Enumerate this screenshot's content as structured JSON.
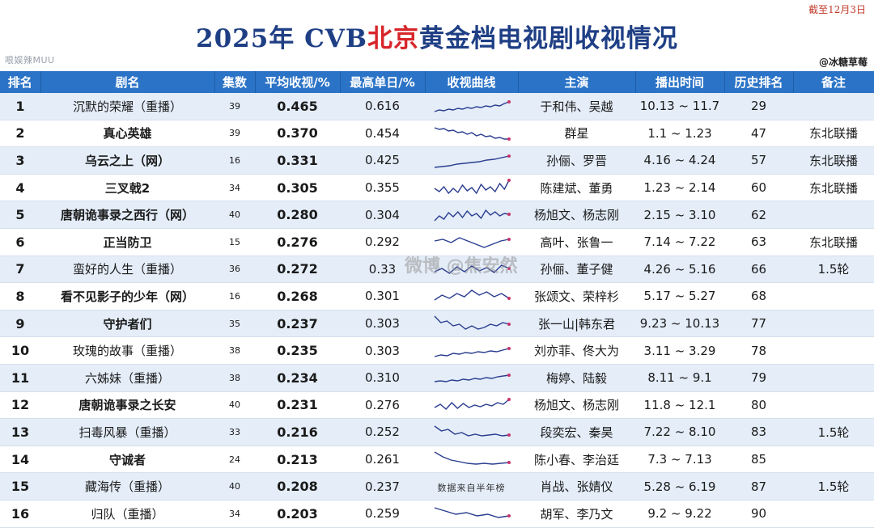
{
  "header": {
    "date_note": "截至12月3日",
    "title_year": "2025年 CVB",
    "title_city": "北京",
    "title_rest": "黄金档电视剧收视情况",
    "left_watermark": "哏娱辣MUU",
    "credit": "@冰糖草莓",
    "center_watermark": "微博 @焦安然"
  },
  "columns": [
    "排名",
    "剧名",
    "集数",
    "平均收视/%",
    "最高单日/%",
    "收视曲线",
    "主演",
    "播出时间",
    "历史排名",
    "备注"
  ],
  "rows": [
    {
      "rank": "1",
      "title": "沉默的荣耀（重播）",
      "eps": "39",
      "avg": "0.465",
      "peak": "0.616",
      "cast": "于和伟、吴越",
      "period": "10.13 ~ 11.7",
      "hist": "29",
      "note": "",
      "bold": false,
      "curve": [
        20,
        18,
        19,
        17,
        18,
        16,
        17,
        15,
        16,
        14,
        15,
        13,
        14,
        12,
        13,
        10,
        8
      ]
    },
    {
      "rank": "2",
      "title": "真心英雄",
      "eps": "39",
      "avg": "0.370",
      "peak": "0.454",
      "cast": "群星",
      "period": "1.1 ~ 1.23",
      "hist": "47",
      "note": "东北联播",
      "bold": true,
      "curve": [
        6,
        8,
        7,
        10,
        9,
        12,
        11,
        14,
        12,
        16,
        14,
        17,
        16,
        19,
        18,
        20,
        20
      ]
    },
    {
      "rank": "3",
      "title": "乌云之上（网）",
      "eps": "16",
      "avg": "0.331",
      "peak": "0.425",
      "cast": "孙俪、罗晋",
      "period": "4.16 ~ 4.24",
      "hist": "57",
      "note": "东北联播",
      "bold": true,
      "curve": [
        22,
        21,
        20,
        18,
        17,
        16,
        15,
        13,
        12,
        10,
        8
      ]
    },
    {
      "rank": "4",
      "title": "三叉戟2",
      "eps": "34",
      "avg": "0.305",
      "peak": "0.355",
      "cast": "陈建斌、董勇",
      "period": "1.23 ~ 2.14",
      "hist": "60",
      "note": "东北联播",
      "bold": true,
      "curve": [
        14,
        18,
        12,
        20,
        14,
        19,
        10,
        17,
        13,
        20,
        9,
        16,
        12,
        18,
        8,
        15,
        4
      ]
    },
    {
      "rank": "5",
      "title": "唐朝诡事录之西行（网）",
      "eps": "40",
      "avg": "0.280",
      "peak": "0.304",
      "cast": "杨旭文、杨志刚",
      "period": "2.15 ~ 3.10",
      "hist": "62",
      "note": "",
      "bold": true,
      "curve": [
        20,
        14,
        18,
        10,
        15,
        9,
        16,
        8,
        14,
        11,
        17,
        7,
        13,
        9,
        14,
        11,
        12
      ]
    },
    {
      "rank": "6",
      "title": "正当防卫",
      "eps": "15",
      "avg": "0.276",
      "peak": "0.292",
      "cast": "高叶、张鲁一",
      "period": "7.14 ~ 7.22",
      "hist": "63",
      "note": "东北联播",
      "bold": true,
      "curve": [
        12,
        10,
        14,
        8,
        12,
        16,
        20,
        16,
        12,
        10
      ]
    },
    {
      "rank": "7",
      "title": "蛮好的人生（重播）",
      "eps": "36",
      "avg": "0.272",
      "peak": "0.33",
      "cast": "孙俪、董子健",
      "period": "4.26 ~ 5.16",
      "hist": "66",
      "note": "1.5轮",
      "bold": false,
      "curve": [
        16,
        12,
        18,
        10,
        16,
        9,
        15,
        11,
        17,
        8,
        12
      ]
    },
    {
      "rank": "8",
      "title": "看不见影子的少年（网）",
      "eps": "16",
      "avg": "0.268",
      "peak": "0.301",
      "cast": "张颂文、荣梓杉",
      "period": "5.17 ~ 5.27",
      "hist": "68",
      "note": "",
      "bold": true,
      "curve": [
        18,
        12,
        16,
        10,
        14,
        6,
        12,
        8,
        14,
        10,
        16
      ]
    },
    {
      "rank": "9",
      "title": "守护者们",
      "eps": "35",
      "avg": "0.237",
      "peak": "0.303",
      "cast": "张一山|韩东君",
      "period": "9.23 ~ 10.13",
      "hist": "77",
      "note": "",
      "bold": true,
      "curve": [
        4,
        12,
        10,
        16,
        14,
        20,
        16,
        20,
        18,
        14,
        16,
        12,
        14
      ]
    },
    {
      "rank": "10",
      "title": "玫瑰的故事（重播）",
      "eps": "38",
      "avg": "0.235",
      "peak": "0.303",
      "cast": "刘亦菲、佟大为",
      "period": "3.11 ~ 3.29",
      "hist": "78",
      "note": "",
      "bold": false,
      "curve": [
        20,
        18,
        19,
        16,
        17,
        15,
        16,
        14,
        15,
        13,
        14,
        12,
        10
      ]
    },
    {
      "rank": "11",
      "title": "六姊妹（重播）",
      "eps": "38",
      "avg": "0.234",
      "peak": "0.310",
      "cast": "梅婷、陆毅",
      "period": "8.11 ~ 9.1",
      "hist": "79",
      "note": "",
      "bold": false,
      "curve": [
        18,
        17,
        18,
        16,
        17,
        15,
        16,
        14,
        15,
        13,
        14,
        12,
        11,
        10
      ]
    },
    {
      "rank": "12",
      "title": "唐朝诡事录之长安",
      "eps": "40",
      "avg": "0.231",
      "peak": "0.276",
      "cast": "杨旭文、杨志刚",
      "period": "11.8 ~ 12.1",
      "hist": "80",
      "note": "",
      "bold": true,
      "curve": [
        16,
        12,
        18,
        10,
        17,
        11,
        16,
        13,
        15,
        12,
        14,
        10,
        12,
        6
      ]
    },
    {
      "rank": "13",
      "title": "扫毒风暴（重播）",
      "eps": "33",
      "avg": "0.216",
      "peak": "0.252",
      "cast": "段奕宏、秦昊",
      "period": "7.22 ~ 8.10",
      "hist": "83",
      "note": "1.5轮",
      "bold": false,
      "curve": [
        6,
        12,
        10,
        16,
        14,
        18,
        16,
        18,
        17,
        16,
        18,
        17
      ]
    },
    {
      "rank": "14",
      "title": "守诚者",
      "eps": "24",
      "avg": "0.213",
      "peak": "0.261",
      "cast": "陈小春、李治廷",
      "period": "7.3 ~ 7.13",
      "hist": "85",
      "note": "",
      "bold": true,
      "curve": [
        4,
        10,
        14,
        16,
        18,
        19,
        18,
        19,
        18,
        17
      ]
    },
    {
      "rank": "15",
      "title": "藏海传（重播）",
      "eps": "40",
      "avg": "0.208",
      "peak": "0.237",
      "cast": "肖战、张婧仪",
      "period": "5.28 ~ 6.19",
      "hist": "87",
      "note": "1.5轮",
      "bold": false,
      "curve": [],
      "curve_note": "数据来自半年榜"
    },
    {
      "rank": "16",
      "title": "归队（重播）",
      "eps": "34",
      "avg": "0.203",
      "peak": "0.259",
      "cast": "胡军、李乃文",
      "period": "9.2 ~ 9.22",
      "hist": "90",
      "note": "",
      "bold": false,
      "curve": [
        6,
        10,
        14,
        12,
        16,
        14,
        18,
        16
      ]
    }
  ],
  "colors": {
    "header_bg": "#2b73c6",
    "row_alt": "#e4edf8",
    "title_blue": "#1f3f85",
    "title_red": "#d7262b",
    "curve": "#2a3d8f",
    "curve_end": "#c8336b"
  }
}
